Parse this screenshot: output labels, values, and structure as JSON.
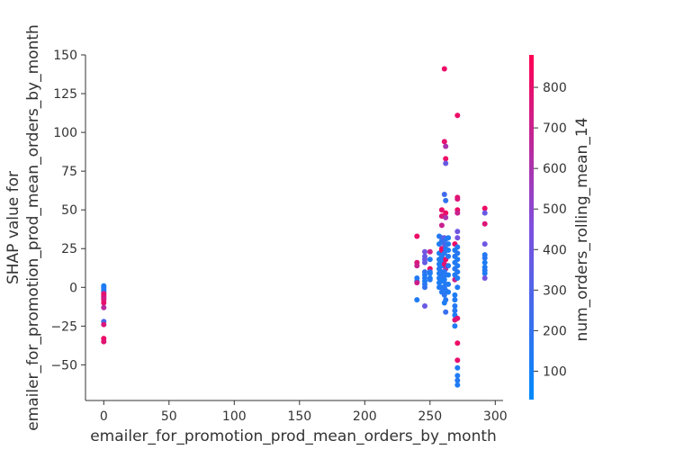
{
  "chart_data": {
    "type": "scatter",
    "xlabel": "emailer_for_promotion_prod_mean_orders_by_month",
    "ylabel_lines": [
      "SHAP value for",
      "emailer_for_promotion_prod_mean_orders_by_month"
    ],
    "xlim": [
      -14,
      306
    ],
    "ylim": [
      -73,
      150
    ],
    "xticks": [
      0,
      50,
      100,
      150,
      200,
      250,
      300
    ],
    "yticks": [
      -50,
      -25,
      0,
      25,
      50,
      75,
      100,
      125,
      150
    ],
    "grid": false,
    "colorbar": {
      "label": "num_orders_rolling_mean_14",
      "range": [
        30,
        880
      ],
      "ticks": [
        100,
        200,
        300,
        400,
        500,
        600,
        700,
        800
      ],
      "colors": [
        "#008afb",
        "#7e4fde",
        "#ff0052"
      ]
    },
    "points": [
      {
        "x": 0,
        "y": 1,
        "c": 120
      },
      {
        "x": 0,
        "y": 0,
        "c": 130
      },
      {
        "x": 0,
        "y": -1,
        "c": 140
      },
      {
        "x": 0,
        "y": -2,
        "c": 150
      },
      {
        "x": 0,
        "y": -3,
        "c": 160
      },
      {
        "x": 0,
        "y": -4,
        "c": 780
      },
      {
        "x": 0,
        "y": -5,
        "c": 760
      },
      {
        "x": 0,
        "y": -6,
        "c": 820
      },
      {
        "x": 0,
        "y": -7,
        "c": 700
      },
      {
        "x": 0,
        "y": -8,
        "c": 740
      },
      {
        "x": 0,
        "y": -10,
        "c": 800
      },
      {
        "x": 0,
        "y": -13,
        "c": 650
      },
      {
        "x": 0,
        "y": -22,
        "c": 280
      },
      {
        "x": 0,
        "y": -24,
        "c": 760
      },
      {
        "x": 0,
        "y": -33,
        "c": 820
      },
      {
        "x": 0,
        "y": -35,
        "c": 780
      },
      {
        "x": 240,
        "y": 33,
        "c": 820
      },
      {
        "x": 240,
        "y": 16,
        "c": 760
      },
      {
        "x": 240,
        "y": 14,
        "c": 700
      },
      {
        "x": 240,
        "y": 6,
        "c": 150
      },
      {
        "x": 240,
        "y": 4,
        "c": 120
      },
      {
        "x": 240,
        "y": 3,
        "c": 720
      },
      {
        "x": 240,
        "y": -8,
        "c": 130
      },
      {
        "x": 246,
        "y": 23,
        "c": 420
      },
      {
        "x": 246,
        "y": 20,
        "c": 380
      },
      {
        "x": 246,
        "y": 18,
        "c": 400
      },
      {
        "x": 246,
        "y": 16,
        "c": 360
      },
      {
        "x": 246,
        "y": 10,
        "c": 200
      },
      {
        "x": 246,
        "y": 8,
        "c": 140
      },
      {
        "x": 246,
        "y": 6,
        "c": 150
      },
      {
        "x": 246,
        "y": 4,
        "c": 130
      },
      {
        "x": 246,
        "y": 2,
        "c": 160
      },
      {
        "x": 246,
        "y": 0,
        "c": 200
      },
      {
        "x": 246,
        "y": -12,
        "c": 380
      },
      {
        "x": 250,
        "y": 23,
        "c": 700
      },
      {
        "x": 250,
        "y": 18,
        "c": 150
      },
      {
        "x": 250,
        "y": 12,
        "c": 820
      },
      {
        "x": 250,
        "y": 10,
        "c": 160
      },
      {
        "x": 250,
        "y": 9,
        "c": 140
      },
      {
        "x": 250,
        "y": 6,
        "c": 120
      },
      {
        "x": 250,
        "y": 5,
        "c": 150
      },
      {
        "x": 257,
        "y": 33,
        "c": 140
      },
      {
        "x": 257,
        "y": 28,
        "c": 130
      },
      {
        "x": 257,
        "y": 22,
        "c": 120
      },
      {
        "x": 257,
        "y": 18,
        "c": 140
      },
      {
        "x": 257,
        "y": 15,
        "c": 130
      },
      {
        "x": 257,
        "y": 12,
        "c": 150
      },
      {
        "x": 257,
        "y": 9,
        "c": 130
      },
      {
        "x": 257,
        "y": 6,
        "c": 140
      },
      {
        "x": 257,
        "y": 3,
        "c": 120
      },
      {
        "x": 257,
        "y": 0,
        "c": 130
      },
      {
        "x": 259,
        "y": 50,
        "c": 800
      },
      {
        "x": 259,
        "y": 46,
        "c": 760
      },
      {
        "x": 259,
        "y": 40,
        "c": 700
      },
      {
        "x": 259,
        "y": 32,
        "c": 200
      },
      {
        "x": 259,
        "y": 30,
        "c": 180
      },
      {
        "x": 259,
        "y": 25,
        "c": 760
      },
      {
        "x": 259,
        "y": 24,
        "c": 820
      },
      {
        "x": 259,
        "y": 20,
        "c": 150
      },
      {
        "x": 259,
        "y": 17,
        "c": 130
      },
      {
        "x": 259,
        "y": 14,
        "c": 140
      },
      {
        "x": 259,
        "y": 10,
        "c": 160
      },
      {
        "x": 259,
        "y": 7,
        "c": 150
      },
      {
        "x": 259,
        "y": 4,
        "c": 130
      },
      {
        "x": 259,
        "y": 0,
        "c": 140
      },
      {
        "x": 259,
        "y": -3,
        "c": 150
      },
      {
        "x": 261,
        "y": 141,
        "c": 820
      },
      {
        "x": 261,
        "y": 94,
        "c": 800
      },
      {
        "x": 262,
        "y": 91,
        "c": 600
      },
      {
        "x": 262,
        "y": 83,
        "c": 820
      },
      {
        "x": 262,
        "y": 80,
        "c": 380
      },
      {
        "x": 261,
        "y": 60,
        "c": 250
      },
      {
        "x": 262,
        "y": 56,
        "c": 200
      },
      {
        "x": 262,
        "y": 48,
        "c": 820
      },
      {
        "x": 262,
        "y": 45,
        "c": 600
      },
      {
        "x": 261,
        "y": 32,
        "c": 400
      },
      {
        "x": 262,
        "y": 31,
        "c": 180
      },
      {
        "x": 261,
        "y": 28,
        "c": 260
      },
      {
        "x": 262,
        "y": 25,
        "c": 150
      },
      {
        "x": 261,
        "y": 22,
        "c": 160
      },
      {
        "x": 262,
        "y": 18,
        "c": 820
      },
      {
        "x": 261,
        "y": 15,
        "c": 780
      },
      {
        "x": 262,
        "y": 12,
        "c": 600
      },
      {
        "x": 261,
        "y": 10,
        "c": 150
      },
      {
        "x": 262,
        "y": 8,
        "c": 160
      },
      {
        "x": 261,
        "y": 5,
        "c": 130
      },
      {
        "x": 262,
        "y": 2,
        "c": 140
      },
      {
        "x": 261,
        "y": 0,
        "c": 150
      },
      {
        "x": 262,
        "y": -2,
        "c": 160
      },
      {
        "x": 261,
        "y": -5,
        "c": 170
      },
      {
        "x": 262,
        "y": -8,
        "c": 150
      },
      {
        "x": 261,
        "y": -10,
        "c": 130
      },
      {
        "x": 262,
        "y": -16,
        "c": 220
      },
      {
        "x": 264,
        "y": 32,
        "c": 130
      },
      {
        "x": 264,
        "y": 28,
        "c": 140
      },
      {
        "x": 264,
        "y": 24,
        "c": 130
      },
      {
        "x": 264,
        "y": 20,
        "c": 150
      },
      {
        "x": 264,
        "y": 14,
        "c": 140
      },
      {
        "x": 264,
        "y": 8,
        "c": 130
      },
      {
        "x": 264,
        "y": 2,
        "c": 140
      },
      {
        "x": 264,
        "y": -3,
        "c": 130
      },
      {
        "x": 269,
        "y": 28,
        "c": 820
      },
      {
        "x": 269,
        "y": 24,
        "c": 130
      },
      {
        "x": 269,
        "y": 20,
        "c": 150
      },
      {
        "x": 269,
        "y": 16,
        "c": 140
      },
      {
        "x": 269,
        "y": 12,
        "c": 160
      },
      {
        "x": 269,
        "y": 8,
        "c": 130
      },
      {
        "x": 269,
        "y": 5,
        "c": 700
      },
      {
        "x": 269,
        "y": -5,
        "c": 130
      },
      {
        "x": 269,
        "y": -8,
        "c": 140
      },
      {
        "x": 269,
        "y": -12,
        "c": 150
      },
      {
        "x": 269,
        "y": -15,
        "c": 160
      },
      {
        "x": 269,
        "y": -18,
        "c": 130
      },
      {
        "x": 269,
        "y": -21,
        "c": 760
      },
      {
        "x": 269,
        "y": -25,
        "c": 140
      },
      {
        "x": 271,
        "y": 111,
        "c": 820
      },
      {
        "x": 271,
        "y": 58,
        "c": 800
      },
      {
        "x": 271,
        "y": 57,
        "c": 760
      },
      {
        "x": 271,
        "y": 50,
        "c": 820
      },
      {
        "x": 271,
        "y": 48,
        "c": 700
      },
      {
        "x": 271,
        "y": 36,
        "c": 400
      },
      {
        "x": 271,
        "y": 32,
        "c": 420
      },
      {
        "x": 271,
        "y": 26,
        "c": 150
      },
      {
        "x": 271,
        "y": 22,
        "c": 160
      },
      {
        "x": 271,
        "y": 18,
        "c": 130
      },
      {
        "x": 271,
        "y": 14,
        "c": 140
      },
      {
        "x": 271,
        "y": 10,
        "c": 150
      },
      {
        "x": 271,
        "y": 6,
        "c": 130
      },
      {
        "x": 271,
        "y": 0,
        "c": 140
      },
      {
        "x": 271,
        "y": -20,
        "c": 780
      },
      {
        "x": 271,
        "y": -36,
        "c": 820
      },
      {
        "x": 271,
        "y": -47,
        "c": 800
      },
      {
        "x": 271,
        "y": -52,
        "c": 130
      },
      {
        "x": 271,
        "y": -57,
        "c": 140
      },
      {
        "x": 271,
        "y": -60,
        "c": 150
      },
      {
        "x": 271,
        "y": -63,
        "c": 130
      },
      {
        "x": 292,
        "y": 51,
        "c": 820
      },
      {
        "x": 292,
        "y": 48,
        "c": 380
      },
      {
        "x": 292,
        "y": 41,
        "c": 760
      },
      {
        "x": 292,
        "y": 28,
        "c": 400
      },
      {
        "x": 292,
        "y": 21,
        "c": 150
      },
      {
        "x": 292,
        "y": 19,
        "c": 160
      },
      {
        "x": 292,
        "y": 16,
        "c": 130
      },
      {
        "x": 292,
        "y": 13,
        "c": 140
      },
      {
        "x": 292,
        "y": 11,
        "c": 150
      },
      {
        "x": 292,
        "y": 9,
        "c": 130
      },
      {
        "x": 292,
        "y": 6,
        "c": 420
      }
    ]
  }
}
